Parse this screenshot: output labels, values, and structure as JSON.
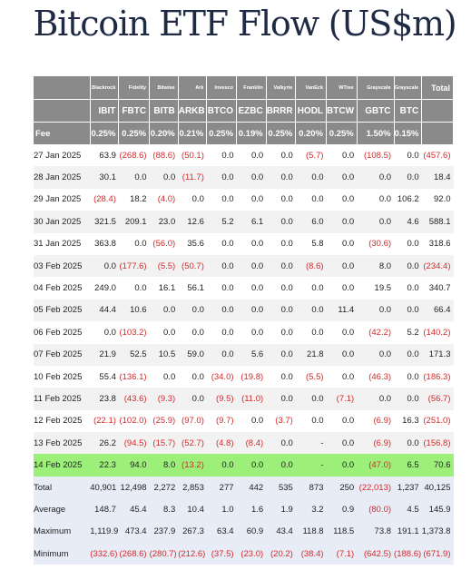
{
  "title": "Bitcoin ETF Flow (US$m)",
  "header": {
    "issuers": [
      "Blackrock",
      "Fidelity",
      "Bitwise",
      "Ark",
      "Invesco",
      "Franklin",
      "Valkyrie",
      "VanEck",
      "WTree",
      "Grayscale",
      "Grayscale"
    ],
    "tickers": [
      "IBIT",
      "FBTC",
      "BITB",
      "ARKB",
      "BTCO",
      "EZBC",
      "BRRR",
      "HODL",
      "BTCW",
      "GBTC",
      "BTC"
    ],
    "total_label": "Total",
    "fee_label": "Fee",
    "fees": [
      "0.25%",
      "0.25%",
      "0.20%",
      "0.21%",
      "0.25%",
      "0.19%",
      "0.25%",
      "0.20%",
      "0.25%",
      "1.50%",
      "0.15%"
    ]
  },
  "rows": [
    {
      "date": "27 Jan 2025",
      "values": [
        "63.9",
        "(268.6)",
        "(88.6)",
        "(50.1)",
        "0.0",
        "0.0",
        "0.0",
        "(5.7)",
        "0.0",
        "(108.5)",
        "0.0",
        "(457.6)"
      ]
    },
    {
      "date": "28 Jan 2025",
      "values": [
        "30.1",
        "0.0",
        "0.0",
        "(11.7)",
        "0.0",
        "0.0",
        "0.0",
        "0.0",
        "0.0",
        "0.0",
        "0.0",
        "18.4"
      ]
    },
    {
      "date": "29 Jan 2025",
      "values": [
        "(28.4)",
        "18.2",
        "(4.0)",
        "0.0",
        "0.0",
        "0.0",
        "0.0",
        "0.0",
        "0.0",
        "0.0",
        "106.2",
        "92.0"
      ]
    },
    {
      "date": "30 Jan 2025",
      "values": [
        "321.5",
        "209.1",
        "23.0",
        "12.6",
        "5.2",
        "6.1",
        "0.0",
        "6.0",
        "0.0",
        "0.0",
        "4.6",
        "588.1"
      ]
    },
    {
      "date": "31 Jan 2025",
      "values": [
        "363.8",
        "0.0",
        "(56.0)",
        "35.6",
        "0.0",
        "0.0",
        "0.0",
        "5.8",
        "0.0",
        "(30.6)",
        "0.0",
        "318.6"
      ]
    },
    {
      "date": "03 Feb 2025",
      "values": [
        "0.0",
        "(177.6)",
        "(5.5)",
        "(50.7)",
        "0.0",
        "0.0",
        "0.0",
        "(8.6)",
        "0.0",
        "8.0",
        "0.0",
        "(234.4)"
      ]
    },
    {
      "date": "04 Feb 2025",
      "values": [
        "249.0",
        "0.0",
        "16.1",
        "56.1",
        "0.0",
        "0.0",
        "0.0",
        "0.0",
        "0.0",
        "19.5",
        "0.0",
        "340.7"
      ]
    },
    {
      "date": "05 Feb 2025",
      "values": [
        "44.4",
        "10.6",
        "0.0",
        "0.0",
        "0.0",
        "0.0",
        "0.0",
        "0.0",
        "11.4",
        "0.0",
        "0.0",
        "66.4"
      ]
    },
    {
      "date": "06 Feb 2025",
      "values": [
        "0.0",
        "(103.2)",
        "0.0",
        "0.0",
        "0.0",
        "0.0",
        "0.0",
        "0.0",
        "0.0",
        "(42.2)",
        "5.2",
        "(140.2)"
      ]
    },
    {
      "date": "07 Feb 2025",
      "values": [
        "21.9",
        "52.5",
        "10.5",
        "59.0",
        "0.0",
        "5.6",
        "0.0",
        "21.8",
        "0.0",
        "0.0",
        "0.0",
        "171.3"
      ]
    },
    {
      "date": "10 Feb 2025",
      "values": [
        "55.4",
        "(136.1)",
        "0.0",
        "0.0",
        "(34.0)",
        "(19.8)",
        "0.0",
        "(5.5)",
        "0.0",
        "(46.3)",
        "0.0",
        "(186.3)"
      ]
    },
    {
      "date": "11 Feb 2025",
      "values": [
        "23.8",
        "(43.6)",
        "(9.3)",
        "0.0",
        "(9.5)",
        "(11.0)",
        "0.0",
        "0.0",
        "(7.1)",
        "0.0",
        "0.0",
        "(56.7)"
      ]
    },
    {
      "date": "12 Feb 2025",
      "values": [
        "(22.1)",
        "(102.0)",
        "(25.9)",
        "(97.0)",
        "(9.7)",
        "0.0",
        "(3.7)",
        "0.0",
        "0.0",
        "(6.9)",
        "16.3",
        "(251.0)"
      ]
    },
    {
      "date": "13 Feb 2025",
      "values": [
        "26.2",
        "(94.5)",
        "(15.7)",
        "(52.7)",
        "(4.8)",
        "(8.4)",
        "0.0",
        "-",
        "0.0",
        "(6.9)",
        "0.0",
        "(156.8)"
      ]
    },
    {
      "date": "14 Feb 2025",
      "values": [
        "22.3",
        "94.0",
        "8.0",
        "(13.2)",
        "0.0",
        "0.0",
        "0.0",
        "-",
        "0.0",
        "(47.0)",
        "6.5",
        "70.6"
      ]
    }
  ],
  "highlight_row": 14,
  "highlight_color": "#9cf07a",
  "negative_color": "#d42a2a",
  "header_color": "#8a8a8a",
  "summary": [
    {
      "label": "Total",
      "values": [
        "40,901",
        "12,498",
        "2,272",
        "2,853",
        "277",
        "442",
        "535",
        "873",
        "250",
        "(22,013)",
        "1,237",
        "40,125"
      ]
    },
    {
      "label": "Average",
      "values": [
        "148.7",
        "45.4",
        "8.3",
        "10.4",
        "1.0",
        "1.6",
        "1.9",
        "3.2",
        "0.9",
        "(80.0)",
        "4.5",
        "145.9"
      ]
    },
    {
      "label": "Maximum",
      "values": [
        "1,119.9",
        "473.4",
        "237.9",
        "267.3",
        "63.4",
        "60.9",
        "43.4",
        "118.8",
        "118.5",
        "73.8",
        "191.1",
        "1,373.8"
      ]
    },
    {
      "label": "Minimum",
      "values": [
        "(332.6)",
        "(268.6)",
        "(280.7)",
        "(212.6)",
        "(37.5)",
        "(23.0)",
        "(20.2)",
        "(38.4)",
        "(7.1)",
        "(642.5)",
        "(188.6)",
        "(671.9)"
      ]
    }
  ]
}
